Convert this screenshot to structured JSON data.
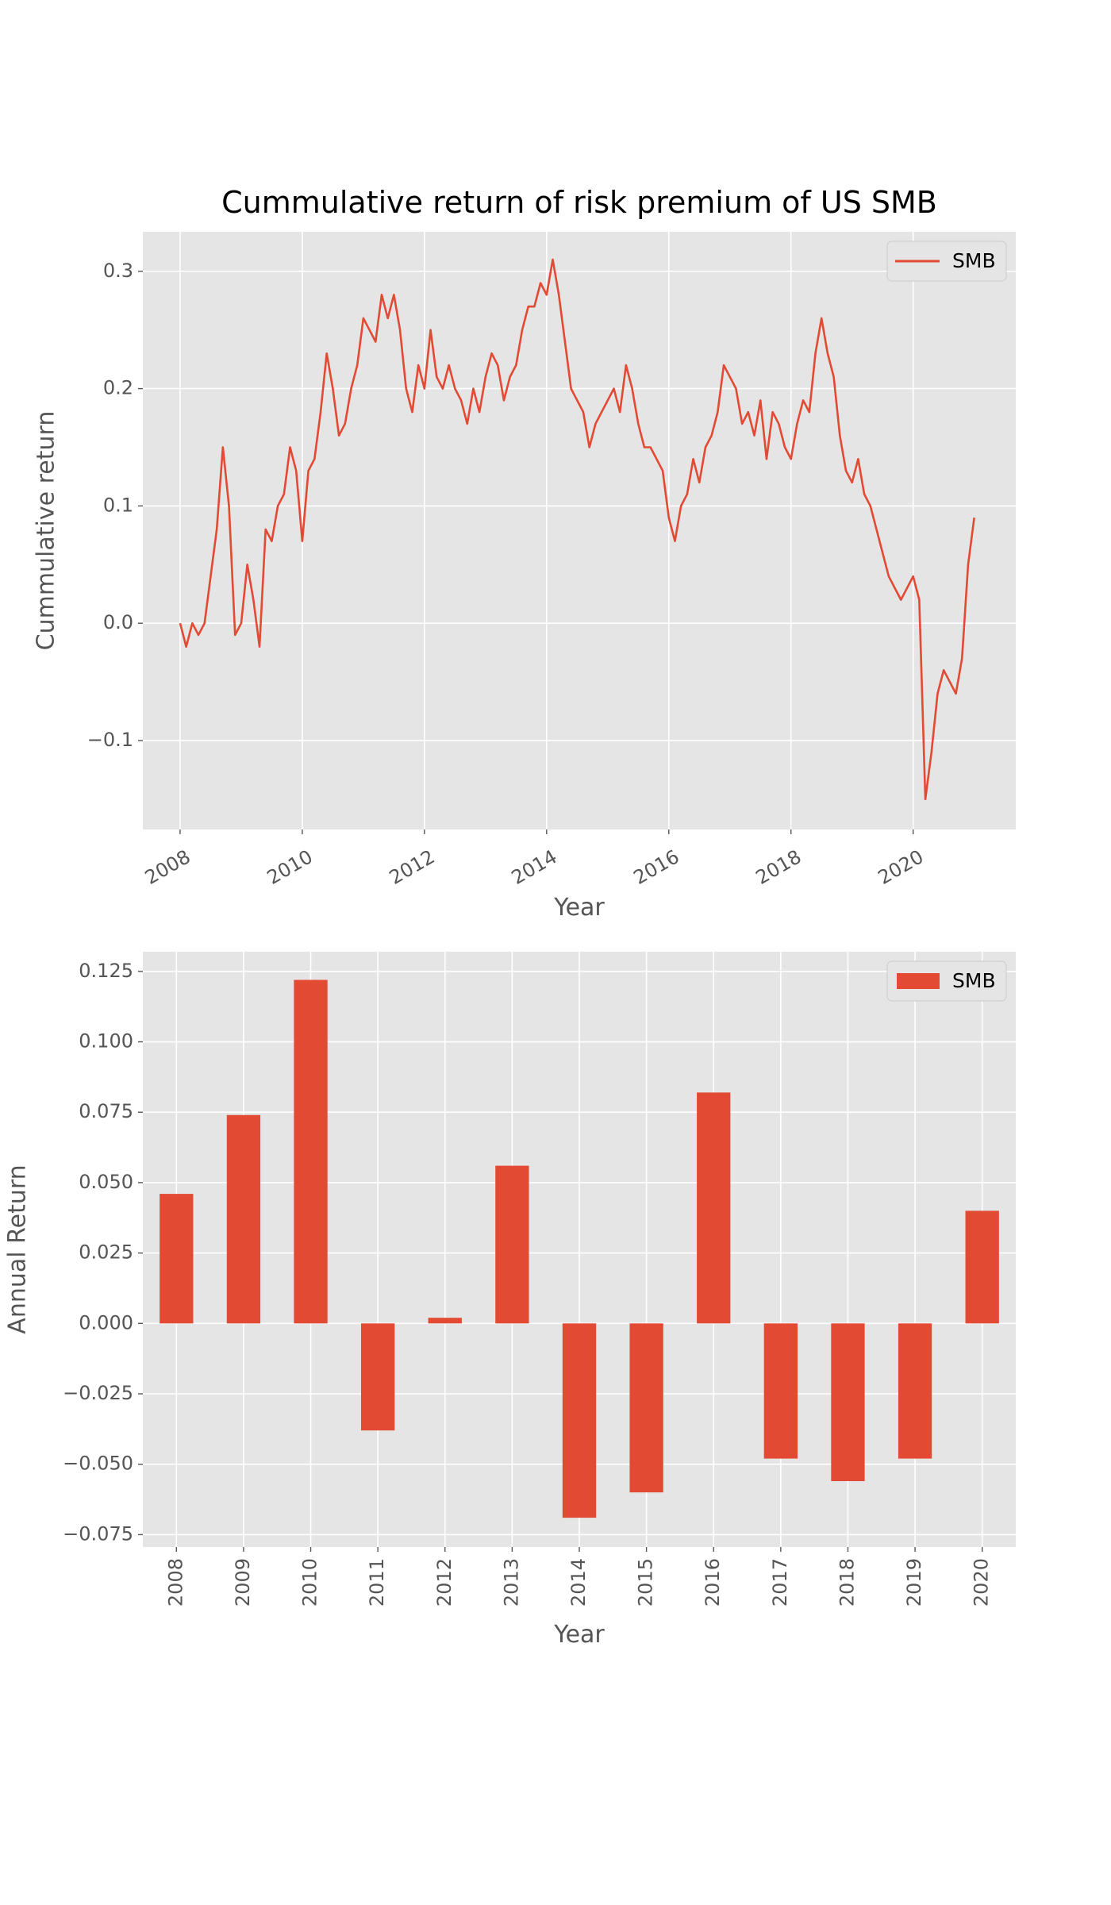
{
  "chart_data": [
    {
      "type": "line",
      "title": "Cummulative return of risk premium of US SMB",
      "xlabel": "Year",
      "ylabel": "Cummulative return",
      "x": [
        2008,
        2008.1,
        2008.2,
        2008.3,
        2008.4,
        2008.5,
        2008.6,
        2008.7,
        2008.8,
        2008.9,
        2009,
        2009.1,
        2009.2,
        2009.3,
        2009.4,
        2009.5,
        2009.6,
        2009.7,
        2009.8,
        2009.9,
        2010,
        2010.1,
        2010.2,
        2010.3,
        2010.4,
        2010.5,
        2010.6,
        2010.7,
        2010.8,
        2010.9,
        2011,
        2011.1,
        2011.2,
        2011.3,
        2011.4,
        2011.5,
        2011.6,
        2011.7,
        2011.8,
        2011.9,
        2012,
        2012.1,
        2012.2,
        2012.3,
        2012.4,
        2012.5,
        2012.6,
        2012.7,
        2012.8,
        2012.9,
        2013,
        2013.1,
        2013.2,
        2013.3,
        2013.4,
        2013.5,
        2013.6,
        2013.7,
        2013.8,
        2013.9,
        2014,
        2014.1,
        2014.2,
        2014.3,
        2014.4,
        2014.5,
        2014.6,
        2014.7,
        2014.8,
        2014.9,
        2015,
        2015.1,
        2015.2,
        2015.3,
        2015.4,
        2015.5,
        2015.6,
        2015.7,
        2015.8,
        2015.9,
        2016,
        2016.1,
        2016.2,
        2016.3,
        2016.4,
        2016.5,
        2016.6,
        2016.7,
        2016.8,
        2016.9,
        2017,
        2017.1,
        2017.2,
        2017.3,
        2017.4,
        2017.5,
        2017.6,
        2017.7,
        2017.8,
        2017.9,
        2018,
        2018.1,
        2018.2,
        2018.3,
        2018.4,
        2018.5,
        2018.6,
        2018.7,
        2018.8,
        2018.9,
        2019,
        2019.1,
        2019.2,
        2019.3,
        2019.4,
        2019.5,
        2019.6,
        2019.7,
        2019.8,
        2019.9,
        2020,
        2020.1,
        2020.2,
        2020.3,
        2020.4,
        2020.5,
        2020.6,
        2020.7,
        2020.8,
        2020.9,
        2021
      ],
      "series": [
        {
          "name": "SMB",
          "color": "#E24A33",
          "values": [
            0,
            -0.02,
            0,
            -0.01,
            0,
            0.04,
            0.08,
            0.15,
            0.1,
            -0.01,
            0,
            0.05,
            0.02,
            -0.02,
            0.08,
            0.07,
            0.1,
            0.11,
            0.15,
            0.13,
            0.07,
            0.13,
            0.14,
            0.18,
            0.23,
            0.2,
            0.16,
            0.17,
            0.2,
            0.22,
            0.26,
            0.25,
            0.24,
            0.28,
            0.26,
            0.28,
            0.25,
            0.2,
            0.18,
            0.22,
            0.2,
            0.25,
            0.21,
            0.2,
            0.22,
            0.2,
            0.19,
            0.17,
            0.2,
            0.18,
            0.21,
            0.23,
            0.22,
            0.19,
            0.21,
            0.22,
            0.25,
            0.27,
            0.27,
            0.29,
            0.28,
            0.31,
            0.28,
            0.24,
            0.2,
            0.19,
            0.18,
            0.15,
            0.17,
            0.18,
            0.19,
            0.2,
            0.18,
            0.22,
            0.2,
            0.17,
            0.15,
            0.15,
            0.14,
            0.13,
            0.09,
            0.07,
            0.1,
            0.11,
            0.14,
            0.12,
            0.15,
            0.16,
            0.18,
            0.22,
            0.21,
            0.2,
            0.17,
            0.18,
            0.16,
            0.19,
            0.14,
            0.18,
            0.17,
            0.15,
            0.14,
            0.17,
            0.19,
            0.18,
            0.23,
            0.26,
            0.23,
            0.21,
            0.16,
            0.13,
            0.12,
            0.14,
            0.11,
            0.1,
            0.08,
            0.06,
            0.04,
            0.03,
            0.02,
            0.03,
            0.04,
            0.02,
            -0.15,
            -0.11,
            -0.06,
            -0.04,
            -0.05,
            -0.06,
            -0.03,
            0.05,
            0.09
          ]
        }
      ],
      "xlim": [
        2007.39,
        2021.68
      ],
      "ylim": [
        -0.1758,
        0.3337
      ],
      "xticks": [
        2008,
        2010,
        2012,
        2014,
        2016,
        2018,
        2020
      ],
      "yticks": [
        {
          "value": -0.1,
          "label": "−0.1"
        },
        {
          "value": 0,
          "label": "0.0"
        },
        0.1,
        0.2,
        0.3
      ],
      "grid": true,
      "legend": "upper right"
    },
    {
      "type": "bar",
      "xlabel": "Year",
      "ylabel": "Annual Return",
      "categories": [
        "2008",
        "2009",
        "2010",
        "2011",
        "2012",
        "2013",
        "2014",
        "2015",
        "2016",
        "2017",
        "2018",
        "2019",
        "2020"
      ],
      "series": [
        {
          "name": "SMB",
          "color": "#E24A33",
          "values": [
            0.046,
            0.074,
            0.122,
            -0.038,
            0.002,
            0.056,
            -0.069,
            -0.06,
            0.082,
            -0.048,
            -0.056,
            -0.048,
            0.04
          ]
        }
      ],
      "ylim": [
        -0.0794,
        0.132
      ],
      "yticks": [
        {
          "value": -0.075,
          "label": "−0.075"
        },
        {
          "value": -0.05,
          "label": "−0.050"
        },
        {
          "value": -0.025,
          "label": "−0.025"
        },
        {
          "value": 0,
          "label": "0.000"
        },
        {
          "value": 0.025,
          "label": "0.025"
        },
        {
          "value": 0.05,
          "label": "0.050"
        },
        {
          "value": 0.075,
          "label": "0.075"
        },
        {
          "value": 0.1,
          "label": "0.100"
        },
        {
          "value": 0.125,
          "label": "0.125"
        }
      ],
      "grid": true,
      "legend": "upper right"
    }
  ]
}
